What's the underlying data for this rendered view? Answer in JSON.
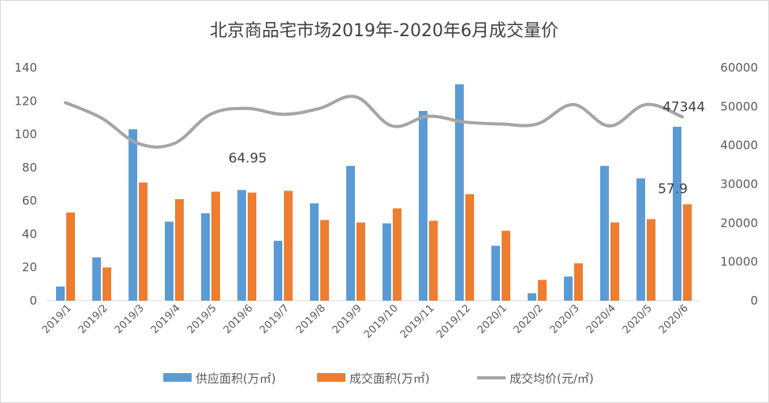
{
  "chart_data": {
    "type": "bar",
    "title": "北京商品宅市场2019年-2020年6月成交量价",
    "categories": [
      "2019/1",
      "2019/2",
      "2019/3",
      "2019/4",
      "2019/5",
      "2019/6",
      "2019/7",
      "2019/8",
      "2019/9",
      "2019/10",
      "2019/11",
      "2019/12",
      "2020/1",
      "2020/2",
      "2020/3",
      "2020/4",
      "2020/5",
      "2020/6"
    ],
    "series": [
      {
        "name": "供应面积(万㎡)",
        "type": "bar",
        "axis": "left",
        "color": "#5b9bd5",
        "values": [
          8.5,
          26,
          103,
          47.5,
          52.5,
          66.5,
          36,
          58.5,
          81,
          46.5,
          114,
          130,
          33,
          4.5,
          14.5,
          81,
          73.5,
          104.5
        ]
      },
      {
        "name": "成交面积(万㎡)",
        "type": "bar",
        "axis": "left",
        "color": "#ed7d31",
        "values": [
          53,
          20,
          71,
          61,
          65.5,
          64.95,
          66,
          48.5,
          47,
          55.5,
          48,
          64,
          42,
          12.5,
          22.5,
          47,
          49,
          57.9
        ]
      },
      {
        "name": "成交均价(元/㎡)",
        "type": "line",
        "axis": "right",
        "color": "#a5a5a5",
        "values": [
          51000,
          47000,
          40500,
          40500,
          48000,
          49500,
          48000,
          49500,
          52500,
          45000,
          47500,
          46000,
          45500,
          45500,
          50500,
          45000,
          50500,
          47344
        ]
      }
    ],
    "data_labels": [
      {
        "series": 1,
        "index": 5,
        "text": "64.95"
      },
      {
        "series": 1,
        "index": 17,
        "text": "57.9"
      },
      {
        "series": 2,
        "index": 17,
        "text": "47344"
      }
    ],
    "y_left": {
      "min": 0,
      "max": 140,
      "ticks": [
        "0",
        "20",
        "40",
        "60",
        "80",
        "100",
        "120",
        "140"
      ]
    },
    "y_right": {
      "min": 0,
      "max": 60000,
      "ticks": [
        "0",
        "10000",
        "20000",
        "30000",
        "40000",
        "50000",
        "60000"
      ]
    },
    "grid": false,
    "legend": "bottom"
  }
}
